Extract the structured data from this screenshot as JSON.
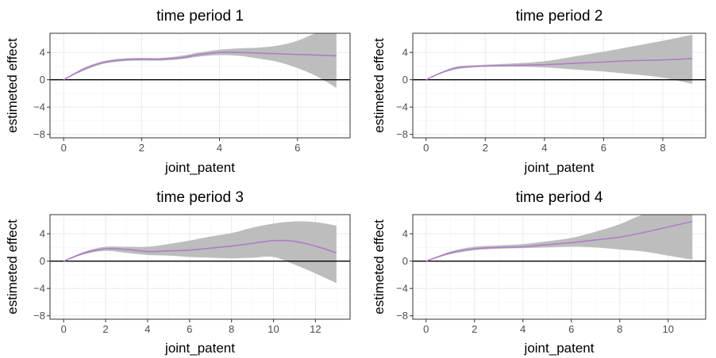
{
  "chart_data": [
    {
      "type": "line",
      "title": "time period 1",
      "xlabel": "joint_patent",
      "ylabel": "estimeted effect",
      "xlim": [
        -0.35,
        7.35
      ],
      "ylim": [
        -8.5,
        6.8
      ],
      "xticks": [
        0,
        2,
        4,
        6
      ],
      "yticks": [
        -8,
        -4,
        0,
        4
      ],
      "grid": true,
      "reference_line_y": 0,
      "colors": {
        "line": "#b07cc6",
        "band": "#bdbdbd",
        "reference": "#000000"
      },
      "x": [
        0,
        0.5,
        1,
        1.5,
        2,
        2.5,
        3,
        3.5,
        4,
        4.5,
        5,
        5.5,
        6,
        6.5,
        7
      ],
      "estimate": [
        0,
        1.5,
        2.5,
        2.9,
        3.0,
        3.0,
        3.2,
        3.7,
        4.0,
        4.0,
        3.9,
        3.8,
        3.7,
        3.6,
        3.5
      ],
      "lower": [
        0,
        1.3,
        2.3,
        2.7,
        2.8,
        2.8,
        3.0,
        3.4,
        3.6,
        3.5,
        3.1,
        2.6,
        1.7,
        0.5,
        -1.2
      ],
      "upper": [
        0,
        1.7,
        2.7,
        3.1,
        3.2,
        3.2,
        3.5,
        4.0,
        4.4,
        4.6,
        4.7,
        5.0,
        5.7,
        6.8,
        6.8
      ]
    },
    {
      "type": "line",
      "title": "time period 2",
      "xlabel": "joint_patent",
      "ylabel": "estimeted effect",
      "xlim": [
        -0.45,
        9.45
      ],
      "ylim": [
        -8.5,
        6.8
      ],
      "xticks": [
        0,
        2,
        4,
        6,
        8
      ],
      "yticks": [
        -8,
        -4,
        0,
        4
      ],
      "grid": true,
      "reference_line_y": 0,
      "colors": {
        "line": "#b07cc6",
        "band": "#bdbdbd",
        "reference": "#000000"
      },
      "x": [
        0,
        0.5,
        1,
        1.5,
        2,
        3,
        4,
        5,
        6,
        7,
        8,
        9
      ],
      "estimate": [
        0,
        1.0,
        1.7,
        1.9,
        2.0,
        2.1,
        2.2,
        2.4,
        2.6,
        2.8,
        2.9,
        3.1
      ],
      "lower": [
        0,
        0.9,
        1.5,
        1.8,
        1.9,
        1.9,
        1.8,
        1.5,
        1.2,
        0.8,
        0.3,
        -0.6
      ],
      "upper": [
        0,
        1.1,
        1.9,
        2.1,
        2.2,
        2.4,
        2.7,
        3.4,
        4.1,
        4.9,
        5.7,
        6.6
      ]
    },
    {
      "type": "line",
      "title": "time period 3",
      "xlabel": "joint_patent",
      "ylabel": "estimeted effect",
      "xlim": [
        -0.65,
        13.65
      ],
      "ylim": [
        -8.5,
        6.8
      ],
      "xticks": [
        0,
        2,
        4,
        6,
        8,
        10,
        12
      ],
      "yticks": [
        -8,
        -4,
        0,
        4
      ],
      "grid": true,
      "reference_line_y": 0,
      "colors": {
        "line": "#b07cc6",
        "band": "#bdbdbd",
        "reference": "#000000"
      },
      "x": [
        0,
        1,
        2,
        3,
        4,
        5,
        6,
        7,
        8,
        9,
        10,
        11,
        12,
        13
      ],
      "estimate": [
        0,
        1.2,
        1.8,
        1.7,
        1.4,
        1.5,
        1.6,
        1.9,
        2.2,
        2.6,
        3.0,
        2.9,
        2.2,
        1.2
      ],
      "lower": [
        0,
        1.0,
        1.5,
        1.2,
        0.9,
        0.8,
        0.6,
        0.5,
        0.4,
        0.5,
        0.6,
        -0.5,
        -1.8,
        -3.2
      ],
      "upper": [
        0,
        1.4,
        2.1,
        2.1,
        2.1,
        2.5,
        3.0,
        3.6,
        4.1,
        4.9,
        5.5,
        5.8,
        5.7,
        5.2
      ]
    },
    {
      "type": "line",
      "title": "time period 4",
      "xlabel": "joint_patent",
      "ylabel": "estimeted effect",
      "xlim": [
        -0.55,
        11.55
      ],
      "ylim": [
        -8.5,
        6.8
      ],
      "xticks": [
        0,
        2,
        4,
        6,
        8,
        10
      ],
      "yticks": [
        -8,
        -4,
        0,
        4
      ],
      "grid": true,
      "reference_line_y": 0,
      "colors": {
        "line": "#b07cc6",
        "band": "#bdbdbd",
        "reference": "#000000"
      },
      "x": [
        0,
        1,
        2,
        3,
        4,
        5,
        6,
        7,
        8,
        9,
        10,
        11
      ],
      "estimate": [
        0,
        1.2,
        1.8,
        2.0,
        2.1,
        2.4,
        2.7,
        3.1,
        3.5,
        4.2,
        5.0,
        5.8
      ],
      "lower": [
        0,
        1.0,
        1.6,
        1.8,
        1.9,
        2.0,
        2.1,
        2.0,
        1.7,
        1.4,
        0.8,
        0.2
      ],
      "upper": [
        0,
        1.4,
        2.1,
        2.3,
        2.5,
        2.9,
        3.4,
        4.3,
        5.4,
        6.8,
        6.8,
        6.8
      ]
    }
  ]
}
